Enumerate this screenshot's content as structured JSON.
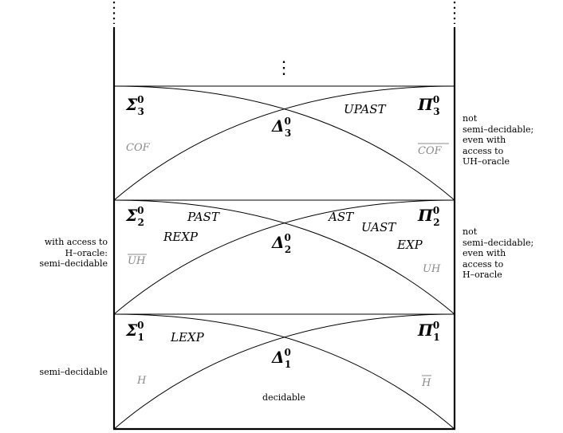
{
  "levels": [
    {
      "id": "level3",
      "sigma": {
        "sym": "Σ",
        "sup": "0",
        "sub": "3"
      },
      "delta": {
        "sym": "Δ",
        "sup": "0",
        "sub": "3"
      },
      "pi": {
        "sym": "Π",
        "sup": "0",
        "sub": "3"
      },
      "classes": [
        {
          "id": "upast",
          "text": "UPAST",
          "grey": false
        },
        {
          "id": "cof",
          "text": "COF",
          "grey": true
        },
        {
          "id": "cof-bar",
          "text": "COF",
          "grey": true,
          "overline": true
        }
      ]
    },
    {
      "id": "level2",
      "sigma": {
        "sym": "Σ",
        "sup": "0",
        "sub": "2"
      },
      "delta": {
        "sym": "Δ",
        "sup": "0",
        "sub": "2"
      },
      "pi": {
        "sym": "Π",
        "sup": "0",
        "sub": "2"
      },
      "classes": [
        {
          "id": "past",
          "text": "PAST",
          "grey": false
        },
        {
          "id": "rexp",
          "text": "REXP",
          "grey": false
        },
        {
          "id": "uh-bar",
          "text": "UH",
          "grey": true,
          "overline": true
        },
        {
          "id": "ast",
          "text": "AST",
          "grey": false
        },
        {
          "id": "uast",
          "text": "UAST",
          "grey": false
        },
        {
          "id": "exp",
          "text": "EXP",
          "grey": false
        },
        {
          "id": "uh",
          "text": "UH",
          "grey": true
        }
      ]
    },
    {
      "id": "level1",
      "sigma": {
        "sym": "Σ",
        "sup": "0",
        "sub": "1"
      },
      "delta": {
        "sym": "Δ",
        "sup": "0",
        "sub": "1"
      },
      "pi": {
        "sym": "Π",
        "sup": "0",
        "sub": "1"
      },
      "classes": [
        {
          "id": "lexp",
          "text": "LEXP",
          "grey": false
        },
        {
          "id": "h",
          "text": "H",
          "grey": true
        },
        {
          "id": "h-bar",
          "text": "H",
          "grey": true,
          "overline": true
        }
      ]
    }
  ],
  "annotations": {
    "level3_right": "not\nsemi–decidable;\neven with\naccess to\nUH–oracle",
    "level2_right": "not\nsemi–decidable;\neven with\naccess to\nH–oracle",
    "level2_left": "with access to\nH–oracle:\nsemi–decidable",
    "level1_left": "semi–decidable",
    "level1_center": "decidable"
  },
  "continuation_dots": "⋮"
}
